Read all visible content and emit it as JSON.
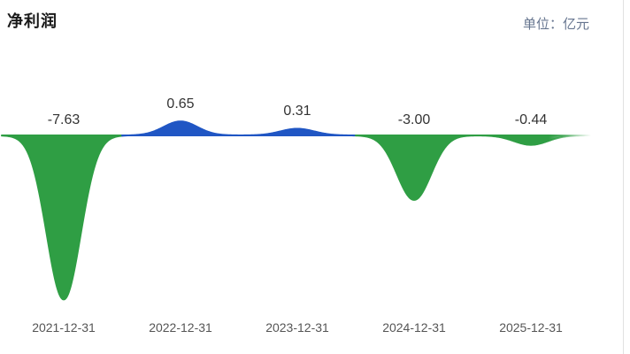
{
  "header": {
    "title": "净利润",
    "unit_label": "单位：亿元"
  },
  "chart_data": {
    "type": "area",
    "title": "净利润",
    "unit": "亿元",
    "categories": [
      "2021-12-31",
      "2022-12-31",
      "2023-12-31",
      "2024-12-31",
      "2025-12-31"
    ],
    "values": [
      -7.63,
      0.65,
      0.31,
      -3.0,
      -0.44
    ],
    "value_labels": [
      "-7.63",
      "0.65",
      "0.31",
      "-3.00",
      "-0.44"
    ],
    "series": [
      {
        "name": "net-profit",
        "values": [
          -7.63,
          0.65,
          0.31,
          -3.0,
          -0.44
        ]
      }
    ],
    "colors": {
      "negative": "#2f9e44",
      "positive": "#2056c4",
      "value_label": "#333333",
      "date_label": "#555555"
    },
    "baseline": 0,
    "ylim": [
      -8,
      1
    ],
    "grid": false,
    "legend": "none"
  }
}
